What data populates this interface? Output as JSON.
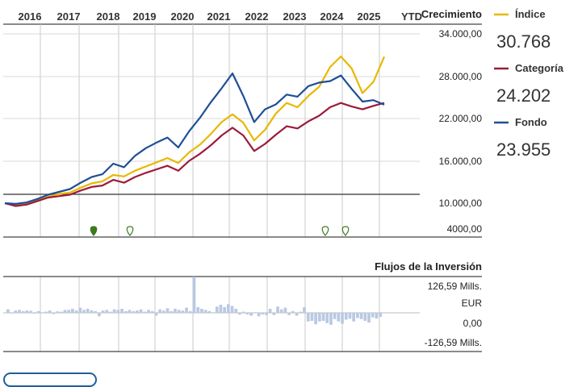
{
  "chart_data": [
    {
      "type": "line",
      "title": "Crecimiento",
      "x_labels": [
        "2016",
        "2017",
        "2018",
        "2019",
        "2020",
        "2021",
        "2022",
        "2023",
        "2024",
        "2025",
        "YTD"
      ],
      "y_ticks": [
        "34.000,00",
        "28.000,00",
        "22.000,00",
        "16.000,00",
        "10.000,00",
        "4000,00"
      ],
      "ylim": [
        4000,
        34000
      ],
      "series": [
        {
          "name": "Índice",
          "color": "#e8b800",
          "latest": "30.768",
          "values": [
            10000,
            9700,
            9900,
            10400,
            10900,
            11300,
            11500,
            12200,
            12800,
            13100,
            14000,
            13800,
            14600,
            15200,
            15800,
            16400,
            15700,
            17200,
            18300,
            19800,
            21500,
            22600,
            21400,
            18900,
            20400,
            22700,
            24200,
            23600,
            25200,
            26500,
            29300,
            30800,
            29100,
            25600,
            27200,
            30768
          ]
        },
        {
          "name": "Categoría",
          "color": "#9b1b3b",
          "latest": "24.202",
          "values": [
            10000,
            9600,
            9800,
            10300,
            10800,
            11000,
            11200,
            11800,
            12300,
            12500,
            13300,
            12900,
            13700,
            14300,
            14800,
            15300,
            14600,
            16000,
            17000,
            18200,
            19600,
            20700,
            19600,
            17400,
            18400,
            19700,
            20900,
            20600,
            21600,
            22400,
            23600,
            24200,
            23700,
            23300,
            23800,
            24202
          ]
        },
        {
          "name": "Fondo",
          "color": "#1f4e96",
          "latest": "23.955",
          "values": [
            10000,
            9900,
            10100,
            10600,
            11200,
            11600,
            12000,
            12900,
            13700,
            14100,
            15600,
            15100,
            16700,
            17800,
            18600,
            19300,
            17900,
            20200,
            22100,
            24300,
            26300,
            28400,
            25200,
            21500,
            23300,
            24000,
            25400,
            25100,
            26600,
            27100,
            27300,
            28100,
            26200,
            24400,
            24600,
            23955
          ]
        }
      ]
    },
    {
      "type": "bar",
      "title": "Flujos de la Inversión",
      "y_ticks": [
        "126,59 Mills.",
        "EUR",
        "0,00",
        "-126,59 Mills."
      ],
      "unit": "Mills. EUR",
      "ylim": [
        -126.59,
        126.59
      ],
      "values": [
        12,
        -2,
        8,
        10,
        6,
        8,
        7,
        -3,
        6,
        2,
        4,
        8,
        -4,
        5,
        4,
        10,
        10,
        14,
        8,
        18,
        10,
        14,
        9,
        6,
        -12,
        8,
        10,
        4,
        12,
        10,
        14,
        6,
        10,
        6,
        8,
        12,
        4,
        10,
        6,
        -10,
        12,
        8,
        16,
        6,
        14,
        10,
        8,
        18,
        6,
        126,
        20,
        14,
        10,
        6,
        2,
        22,
        28,
        20,
        30,
        24,
        14,
        -6,
        4,
        -6,
        -10,
        2,
        -12,
        -6,
        -8,
        14,
        -8,
        22,
        12,
        18,
        -8,
        6,
        -10,
        4,
        20,
        -30,
        -28,
        -40,
        -30,
        -28,
        -36,
        -42,
        -22,
        -30,
        -38,
        -24,
        -20,
        -30,
        -18,
        -22,
        -28,
        -34,
        -16,
        -20,
        -14
      ]
    }
  ],
  "legend": {
    "items": [
      {
        "name": "Índice",
        "value": "30.768",
        "color": "#e8b800"
      },
      {
        "name": "Categoría",
        "value": "24.202",
        "color": "#9b1b3b"
      },
      {
        "name": "Fondo",
        "value": "23.955",
        "color": "#1f4e96"
      }
    ]
  },
  "markers": [
    {
      "year": "2018",
      "filled": true
    },
    {
      "year": "2019",
      "filled": false
    },
    {
      "year": "2024",
      "filled": false
    },
    {
      "year": "2024",
      "filled": false
    }
  ]
}
